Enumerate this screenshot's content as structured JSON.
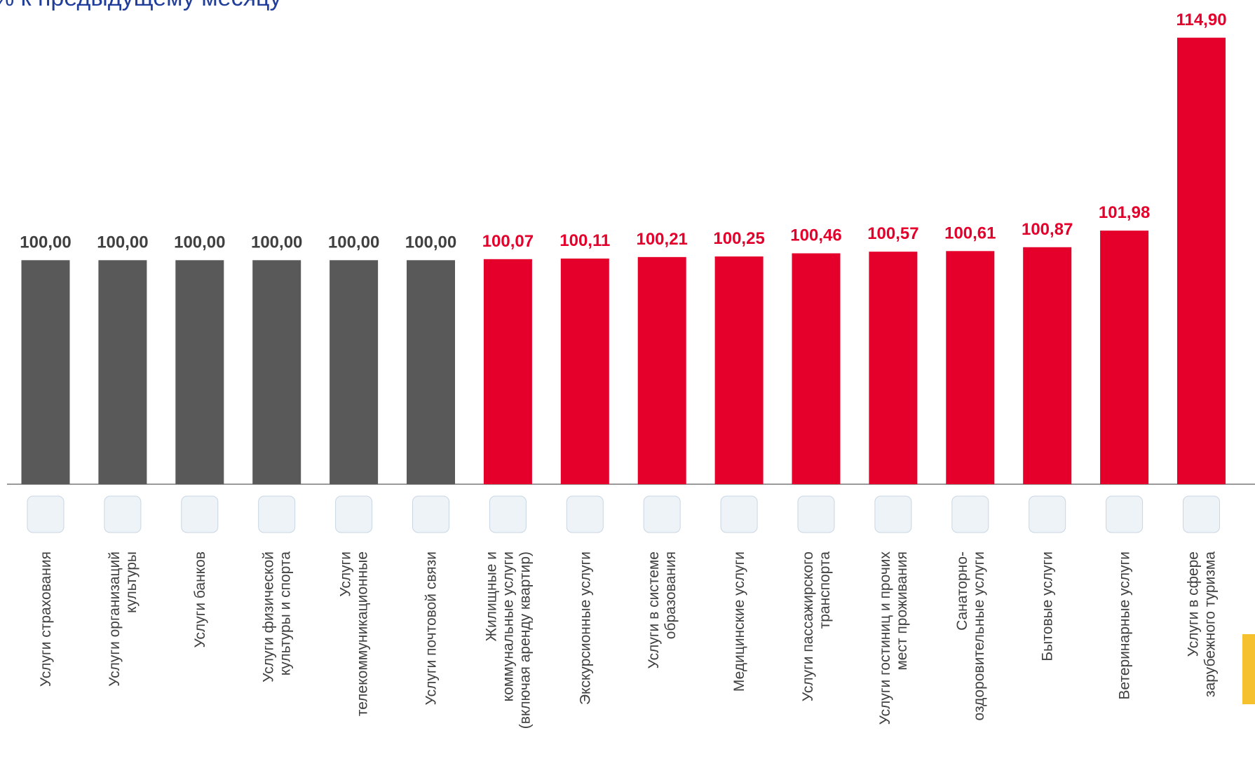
{
  "chart_data": {
    "type": "bar",
    "title": "% к предыдущему месяцу",
    "categories": [
      "Услуги страхования",
      "Услуги организаций\nкультуры",
      "Услуги банков",
      "Услуги физической\nкультуры и спорта",
      "Услуги\nтелекоммуникационные",
      "Услуги почтовой связи",
      "Жилищные и\nкоммунальные услуги\n(включая аренду квартир)",
      "Экскурсионные услуги",
      "Услуги в системе\nобразования",
      "Медицинские услуги",
      "Услуги пассажирского\nтранспорта",
      "Услуги гостиниц и прочих\nмест проживания",
      "Санаторно-\nоздоровительные услуги",
      "Бытовые услуги",
      "Ветеринарные услуги",
      "Услуги в сфере\nзарубежного туризма"
    ],
    "values": [
      100.0,
      100.0,
      100.0,
      100.0,
      100.0,
      100.0,
      100.07,
      100.11,
      100.21,
      100.25,
      100.46,
      100.57,
      100.61,
      100.87,
      101.98,
      114.9
    ],
    "value_labels": [
      "100,00",
      "100,00",
      "100,00",
      "100,00",
      "100,00",
      "100,00",
      "100,07",
      "100,11",
      "100,21",
      "100,25",
      "100,46",
      "100,57",
      "100,61",
      "100,87",
      "101,98",
      "114,90"
    ],
    "colors": [
      "#595959",
      "#595959",
      "#595959",
      "#595959",
      "#595959",
      "#595959",
      "#e4002b",
      "#e4002b",
      "#e4002b",
      "#e4002b",
      "#e4002b",
      "#e4002b",
      "#e4002b",
      "#e4002b",
      "#e4002b",
      "#e4002b"
    ],
    "ylim": [
      85,
      117
    ]
  }
}
